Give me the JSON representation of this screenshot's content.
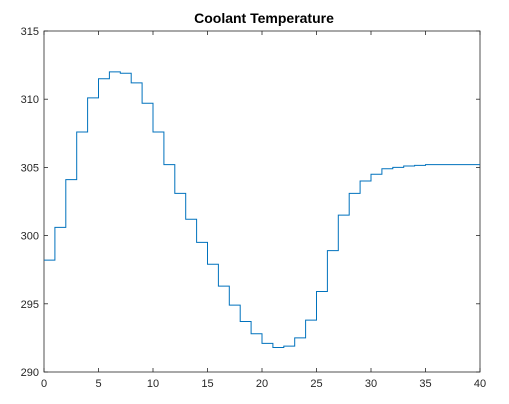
{
  "chart_data": {
    "type": "line",
    "title": "Coolant Temperature",
    "xlabel": "",
    "ylabel": "",
    "xlim": [
      0,
      40
    ],
    "ylim": [
      290,
      315
    ],
    "xticks": [
      0,
      5,
      10,
      15,
      20,
      25,
      30,
      35,
      40
    ],
    "yticks": [
      290,
      295,
      300,
      305,
      310,
      315
    ],
    "grid": false,
    "legend": "none",
    "line_color": "#0072BD",
    "series": [
      {
        "step": "post",
        "x": [
          0,
          1,
          2,
          3,
          4,
          5,
          6,
          7,
          8,
          9,
          10,
          11,
          12,
          13,
          14,
          15,
          16,
          17,
          18,
          19,
          20,
          21,
          22,
          23,
          24,
          25,
          26,
          27,
          28,
          29,
          30,
          31,
          32,
          33,
          34,
          35,
          36,
          37,
          38,
          39,
          40
        ],
        "values": [
          298.2,
          300.6,
          304.1,
          307.6,
          310.1,
          311.5,
          312.0,
          311.9,
          311.2,
          309.7,
          307.6,
          305.2,
          303.1,
          301.2,
          299.5,
          297.9,
          296.3,
          294.9,
          293.7,
          292.8,
          292.1,
          291.8,
          291.9,
          292.5,
          293.8,
          295.9,
          298.9,
          301.5,
          303.1,
          304.0,
          304.5,
          304.9,
          305.0,
          305.1,
          305.15,
          305.2,
          305.2,
          305.2,
          305.2,
          305.2,
          305.2
        ]
      }
    ]
  }
}
